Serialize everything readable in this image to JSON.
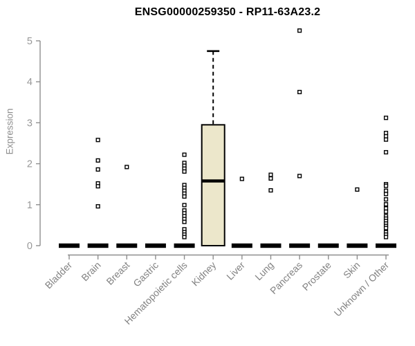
{
  "theme": {
    "background": "#ffffff",
    "title_color": "#000000",
    "axis_color": "#8e8e8e",
    "y_tick_text_color": "#989898",
    "x_label_text_color": "#828282",
    "y_axis_label_color": "#8f8f8f",
    "box_fill": "#ece7cb",
    "box_stroke": "#000000",
    "outlier_fill": "#ffffff",
    "outlier_stroke": "#000000"
  },
  "chart_data": {
    "type": "boxplot",
    "title": "ENSG00000259350 - RP11-63A23.2",
    "ylabel": "Expression",
    "xlabel": "",
    "ylim": [
      0,
      5
    ],
    "yticks": [
      0,
      1,
      2,
      3,
      4,
      5
    ],
    "grid": false,
    "legend": null,
    "x_label_rotation_deg": 45,
    "categories": [
      "Bladder",
      "Brain",
      "Breast",
      "Gastric",
      "Hematopoietic cells",
      "Kidney",
      "Liver",
      "Lung",
      "Pancreas",
      "Prostate",
      "Skin",
      "Unknown / Other"
    ],
    "boxes": [
      {
        "category": "Bladder",
        "q1": 0,
        "median": 0,
        "q3": 0,
        "whisker_low": 0,
        "whisker_high": 0,
        "outliers": []
      },
      {
        "category": "Brain",
        "q1": 0,
        "median": 0,
        "q3": 0,
        "whisker_low": 0,
        "whisker_high": 0,
        "outliers": [
          2.58,
          2.08,
          1.86,
          1.52,
          1.45,
          0.96
        ]
      },
      {
        "category": "Breast",
        "q1": 0,
        "median": 0,
        "q3": 0,
        "whisker_low": 0,
        "whisker_high": 0,
        "outliers": [
          1.92
        ]
      },
      {
        "category": "Gastric",
        "q1": 0,
        "median": 0,
        "q3": 0,
        "whisker_low": 0,
        "whisker_high": 0,
        "outliers": []
      },
      {
        "category": "Hematopoietic cells",
        "q1": 0,
        "median": 0,
        "q3": 0,
        "whisker_low": 0,
        "whisker_high": 0,
        "outliers": [
          2.22,
          2.02,
          1.95,
          1.88,
          1.81,
          1.48,
          1.41,
          1.34,
          1.27,
          1.2,
          0.99,
          0.86,
          0.79,
          0.72,
          0.65,
          0.58,
          0.4,
          0.33,
          0.27,
          0.21
        ]
      },
      {
        "category": "Kidney",
        "q1": 0,
        "median": 1.58,
        "q3": 2.95,
        "whisker_low": 0,
        "whisker_high": 4.75,
        "outliers": []
      },
      {
        "category": "Liver",
        "q1": 0,
        "median": 0,
        "q3": 0,
        "whisker_low": 0,
        "whisker_high": 0,
        "outliers": [
          1.63
        ]
      },
      {
        "category": "Lung",
        "q1": 0,
        "median": 0,
        "q3": 0,
        "whisker_low": 0,
        "whisker_high": 0,
        "outliers": [
          1.73,
          1.64,
          1.35
        ]
      },
      {
        "category": "Pancreas",
        "q1": 0,
        "median": 0,
        "q3": 0,
        "whisker_low": 0,
        "whisker_high": 0,
        "outliers": [
          5.25,
          3.75,
          1.7
        ]
      },
      {
        "category": "Prostate",
        "q1": 0,
        "median": 0,
        "q3": 0,
        "whisker_low": 0,
        "whisker_high": 0,
        "outliers": []
      },
      {
        "category": "Skin",
        "q1": 0,
        "median": 0,
        "q3": 0,
        "whisker_low": 0,
        "whisker_high": 0,
        "outliers": [
          1.37
        ]
      },
      {
        "category": "Unknown / Other",
        "q1": 0,
        "median": 0,
        "q3": 0,
        "whisker_low": 0,
        "whisker_high": 0,
        "outliers": [
          3.12,
          2.75,
          2.67,
          2.59,
          2.28,
          1.5,
          1.46,
          1.34,
          1.26,
          1.13,
          1.01,
          0.91,
          0.83,
          0.72,
          0.66,
          0.6,
          0.54,
          0.48,
          0.43,
          0.33,
          0.27,
          0.21
        ]
      }
    ]
  }
}
